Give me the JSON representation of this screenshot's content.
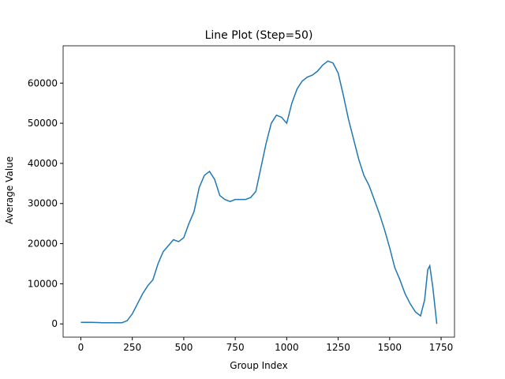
{
  "chart_data": {
    "type": "line",
    "title": "Line Plot (Step=50)",
    "xlabel": "Group Index",
    "ylabel": "Average Value",
    "x": [
      0,
      50,
      100,
      150,
      200,
      225,
      250,
      275,
      300,
      325,
      350,
      375,
      400,
      425,
      450,
      475,
      500,
      525,
      550,
      575,
      600,
      625,
      650,
      675,
      700,
      725,
      750,
      775,
      800,
      825,
      850,
      875,
      900,
      925,
      950,
      975,
      1000,
      1025,
      1050,
      1075,
      1100,
      1125,
      1150,
      1175,
      1200,
      1225,
      1250,
      1275,
      1300,
      1325,
      1350,
      1375,
      1400,
      1425,
      1450,
      1475,
      1500,
      1525,
      1550,
      1575,
      1600,
      1625,
      1650,
      1670,
      1685,
      1695,
      1710,
      1729
    ],
    "series": [
      {
        "color": "#1f77b4",
        "values": [
          400,
          400,
          300,
          300,
          300,
          800,
          2500,
          5000,
          7500,
          9500,
          11000,
          15000,
          18000,
          19500,
          21000,
          20500,
          21500,
          25000,
          28000,
          34000,
          37000,
          38000,
          36000,
          32000,
          31000,
          30500,
          31000,
          31000,
          31000,
          31500,
          33000,
          39000,
          45000,
          50000,
          52000,
          51500,
          50000,
          55000,
          58500,
          60500,
          61500,
          62000,
          63000,
          64500,
          65500,
          65000,
          62500,
          57000,
          51000,
          46000,
          41000,
          37000,
          34500,
          31000,
          27500,
          23500,
          19000,
          14000,
          11000,
          7500,
          5000,
          3000,
          2000,
          6000,
          13500,
          14500,
          9000,
          0
        ]
      }
    ],
    "xlim": [
      -86,
      1815
    ],
    "ylim": [
      -3300,
      69300
    ],
    "xticks": [
      0,
      250,
      500,
      750,
      1000,
      1250,
      1500,
      1750
    ],
    "yticks": [
      0,
      10000,
      20000,
      30000,
      40000,
      50000,
      60000
    ]
  }
}
